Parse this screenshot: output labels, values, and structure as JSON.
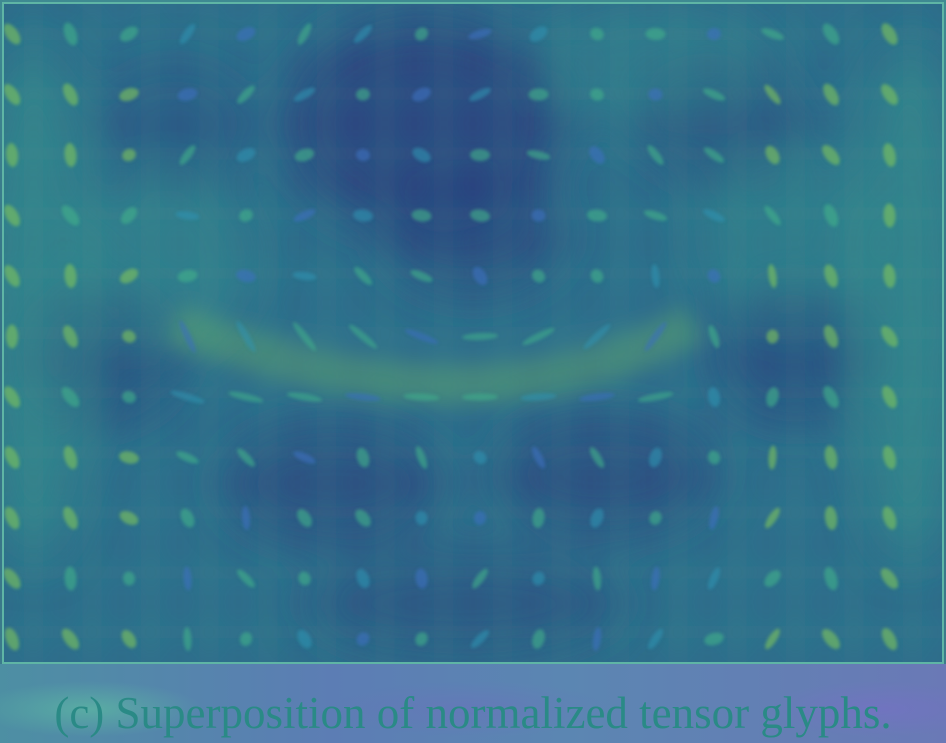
{
  "caption": "(c) Superposition of normalized tensor glyphs.",
  "colors": {
    "background_deep": "#2b3f7e",
    "background_mid": "#2f6e8c",
    "background_light": "#3a9a8e",
    "glyph_yellow": "#7fc45a",
    "glyph_green": "#3fb08a",
    "glyph_cyan": "#2e93b0",
    "glyph_blue": "#3a6fc0",
    "frame": "#5fb5a5",
    "caption_text": "#2a8a86"
  },
  "glyph_field": {
    "rows": 11,
    "cols": 16,
    "glyph_shapes": [
      "ellipsoid",
      "rod",
      "disc"
    ],
    "colormap": "viridis"
  }
}
